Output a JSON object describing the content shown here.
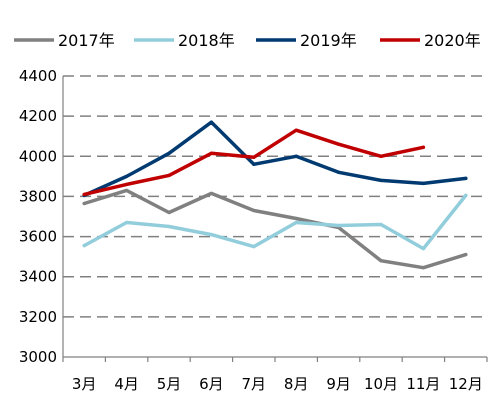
{
  "chart_data": {
    "type": "line",
    "title": "",
    "xlabel": "",
    "ylabel": "",
    "categories": [
      "3月",
      "4月",
      "5月",
      "6月",
      "7月",
      "8月",
      "9月",
      "10月",
      "11月",
      "12月"
    ],
    "ylim": [
      3000,
      4400
    ],
    "yticks": [
      "3000",
      "3200",
      "3400",
      "3600",
      "3800",
      "4000",
      "4200",
      "4400"
    ],
    "grid": true,
    "legend_position": "top",
    "series": [
      {
        "name": "2017年",
        "color": "#808080",
        "values": [
          3765,
          3830,
          3720,
          3815,
          3730,
          3690,
          3645,
          3480,
          3445,
          3510
        ]
      },
      {
        "name": "2018年",
        "color": "#92CDDC",
        "values": [
          3555,
          3670,
          3650,
          3610,
          3550,
          3670,
          3655,
          3660,
          3540,
          3805
        ]
      },
      {
        "name": "2019年",
        "color": "#003A70",
        "values": [
          3805,
          3900,
          4015,
          4170,
          3960,
          4000,
          3920,
          3880,
          3865,
          3890
        ]
      },
      {
        "name": "2020年",
        "color": "#C00000",
        "values": [
          3810,
          3860,
          3905,
          4015,
          3995,
          4130,
          4060,
          4000,
          4045,
          null
        ]
      }
    ]
  }
}
